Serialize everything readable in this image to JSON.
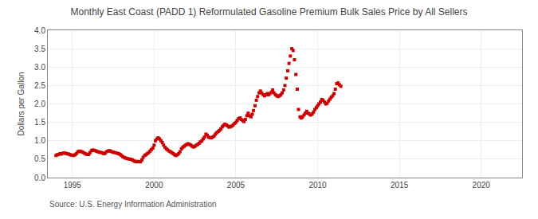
{
  "chart_data": {
    "type": "scatter",
    "title": "Monthly East Coast (PADD 1) Reformulated Gasoline Premium Bulk Sales Price by All Sellers",
    "ylabel": "Dollars per Gallon",
    "annotations": [
      "Source: U.S. Energy Information Administration"
    ],
    "color": "#cc0000",
    "marker": "square",
    "grid": true,
    "xlim": [
      1993.5,
      2022.5
    ],
    "ylim": [
      0.0,
      4.0
    ],
    "xticks": [
      1995,
      2000,
      2005,
      2010,
      2015,
      2020
    ],
    "yticks": [
      {
        "value": 0.0,
        "label": "0.0"
      },
      0.5,
      {
        "value": 1.0,
        "label": "1.0"
      },
      1.5,
      {
        "value": 2.0,
        "label": "2.0"
      },
      2.5,
      {
        "value": 3.0,
        "label": "3.0"
      },
      3.5,
      {
        "value": 4.0,
        "label": "4.0"
      }
    ],
    "x": [
      1994.0,
      1994.08,
      1994.17,
      1994.25,
      1994.33,
      1994.42,
      1994.5,
      1994.58,
      1994.67,
      1994.75,
      1994.83,
      1994.92,
      1995.0,
      1995.08,
      1995.17,
      1995.25,
      1995.33,
      1995.42,
      1995.5,
      1995.58,
      1995.67,
      1995.75,
      1995.83,
      1995.92,
      1996.0,
      1996.08,
      1996.17,
      1996.25,
      1996.33,
      1996.42,
      1996.5,
      1996.58,
      1996.67,
      1996.75,
      1996.83,
      1996.92,
      1997.0,
      1997.08,
      1997.17,
      1997.25,
      1997.33,
      1997.42,
      1997.5,
      1997.58,
      1997.67,
      1997.75,
      1997.83,
      1997.92,
      1998.0,
      1998.08,
      1998.17,
      1998.25,
      1998.33,
      1998.42,
      1998.5,
      1998.58,
      1998.67,
      1998.75,
      1998.83,
      1998.92,
      1999.0,
      1999.08,
      1999.17,
      1999.25,
      1999.33,
      1999.42,
      1999.5,
      1999.58,
      1999.67,
      1999.75,
      1999.83,
      1999.92,
      2000.0,
      2000.08,
      2000.17,
      2000.25,
      2000.33,
      2000.42,
      2000.5,
      2000.58,
      2000.67,
      2000.75,
      2000.83,
      2000.92,
      2001.0,
      2001.08,
      2001.17,
      2001.25,
      2001.33,
      2001.42,
      2001.5,
      2001.58,
      2001.67,
      2001.75,
      2001.83,
      2001.92,
      2002.0,
      2002.08,
      2002.17,
      2002.25,
      2002.33,
      2002.42,
      2002.5,
      2002.58,
      2002.67,
      2002.75,
      2002.83,
      2002.92,
      2003.0,
      2003.08,
      2003.17,
      2003.25,
      2003.33,
      2003.42,
      2003.5,
      2003.58,
      2003.67,
      2003.75,
      2003.83,
      2003.92,
      2004.0,
      2004.08,
      2004.17,
      2004.25,
      2004.33,
      2004.42,
      2004.5,
      2004.58,
      2004.67,
      2004.75,
      2004.83,
      2004.92,
      2005.0,
      2005.08,
      2005.17,
      2005.25,
      2005.33,
      2005.42,
      2005.5,
      2005.58,
      2005.67,
      2005.75,
      2005.83,
      2005.92,
      2006.0,
      2006.08,
      2006.17,
      2006.25,
      2006.33,
      2006.42,
      2006.5,
      2006.58,
      2006.67,
      2006.75,
      2006.83,
      2006.92,
      2007.0,
      2007.08,
      2007.17,
      2007.25,
      2007.33,
      2007.42,
      2007.5,
      2007.58,
      2007.67,
      2007.75,
      2007.83,
      2007.92,
      2008.0,
      2008.08,
      2008.17,
      2008.25,
      2008.33,
      2008.42,
      2008.5,
      2008.58,
      2008.67,
      2008.75,
      2008.83,
      2008.92,
      2009.0,
      2009.08,
      2009.17,
      2009.25,
      2009.33,
      2009.42,
      2009.5,
      2009.58,
      2009.67,
      2009.75,
      2009.83,
      2009.92,
      2010.0,
      2010.08,
      2010.17,
      2010.25,
      2010.33,
      2010.42,
      2010.5,
      2010.58,
      2010.67,
      2010.75,
      2010.83,
      2010.92,
      2011.0,
      2011.08,
      2011.17,
      2011.25,
      2011.33,
      2011.42
    ],
    "values": [
      0.6,
      0.62,
      0.63,
      0.65,
      0.64,
      0.66,
      0.67,
      0.66,
      0.65,
      0.64,
      0.63,
      0.61,
      0.61,
      0.6,
      0.62,
      0.65,
      0.7,
      0.72,
      0.71,
      0.7,
      0.68,
      0.66,
      0.64,
      0.63,
      0.63,
      0.68,
      0.73,
      0.75,
      0.74,
      0.73,
      0.71,
      0.7,
      0.69,
      0.68,
      0.67,
      0.65,
      0.66,
      0.7,
      0.72,
      0.73,
      0.72,
      0.7,
      0.69,
      0.68,
      0.67,
      0.66,
      0.65,
      0.63,
      0.6,
      0.57,
      0.55,
      0.53,
      0.52,
      0.51,
      0.5,
      0.5,
      0.48,
      0.46,
      0.44,
      0.43,
      0.44,
      0.43,
      0.43,
      0.48,
      0.55,
      0.6,
      0.62,
      0.65,
      0.68,
      0.72,
      0.76,
      0.8,
      0.88,
      1.0,
      1.05,
      1.08,
      1.05,
      1.0,
      0.95,
      0.88,
      0.82,
      0.78,
      0.75,
      0.72,
      0.7,
      0.68,
      0.65,
      0.62,
      0.6,
      0.62,
      0.65,
      0.7,
      0.78,
      0.82,
      0.85,
      0.88,
      0.9,
      0.92,
      0.9,
      0.88,
      0.85,
      0.83,
      0.85,
      0.88,
      0.9,
      0.93,
      0.97,
      1.0,
      1.05,
      1.1,
      1.18,
      1.15,
      1.1,
      1.08,
      1.08,
      1.1,
      1.13,
      1.18,
      1.22,
      1.25,
      1.28,
      1.32,
      1.38,
      1.42,
      1.45,
      1.43,
      1.4,
      1.37,
      1.38,
      1.4,
      1.43,
      1.47,
      1.5,
      1.55,
      1.6,
      1.62,
      1.58,
      1.55,
      1.52,
      1.58,
      1.68,
      1.75,
      1.68,
      1.65,
      1.72,
      1.82,
      1.95,
      2.1,
      2.2,
      2.3,
      2.35,
      2.3,
      2.25,
      2.22,
      2.25,
      2.28,
      2.25,
      2.28,
      2.32,
      2.38,
      2.3,
      2.25,
      2.22,
      2.2,
      2.22,
      2.25,
      2.3,
      2.38,
      2.5,
      2.7,
      2.9,
      3.1,
      3.3,
      3.5,
      3.45,
      3.2,
      2.8,
      2.4,
      1.85,
      1.65,
      1.62,
      1.65,
      1.7,
      1.75,
      1.8,
      1.75,
      1.72,
      1.7,
      1.73,
      1.78,
      1.85,
      1.9,
      1.95,
      2.0,
      2.05,
      2.12,
      2.1,
      2.05,
      2.0,
      2.02,
      2.08,
      2.13,
      2.18,
      2.22,
      2.28,
      2.4,
      2.55,
      2.57,
      2.52,
      2.48
    ]
  }
}
